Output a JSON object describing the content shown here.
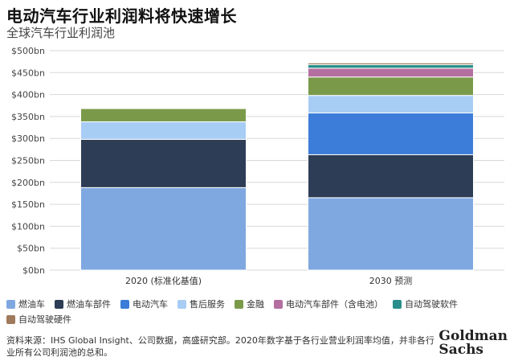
{
  "title": "电动汽车行业利润料将快速增长",
  "subtitle": "全球汽车行业利润池",
  "chart_data": {
    "type": "bar",
    "stacked": true,
    "categories": [
      "2020 (标准化基值)",
      "2030 预测"
    ],
    "series": [
      {
        "name": "燃油车",
        "color": "#7fa8e0",
        "values": [
          188,
          165
        ]
      },
      {
        "name": "燃油车部件",
        "color": "#2e3d56",
        "values": [
          110,
          98
        ]
      },
      {
        "name": "电动汽车",
        "color": "#3b7dd8",
        "values": [
          0,
          95
        ]
      },
      {
        "name": "售后服务",
        "color": "#a8cdf5",
        "values": [
          40,
          40
        ]
      },
      {
        "name": "金融",
        "color": "#7a9a4a",
        "values": [
          30,
          42
        ]
      },
      {
        "name": "电动汽车部件（含电池）",
        "color": "#b46ea0",
        "values": [
          0,
          20
        ]
      },
      {
        "name": "自动驾驶软件",
        "color": "#2a8f8a",
        "values": [
          0,
          8
        ]
      },
      {
        "name": "自动驾驶硬件",
        "color": "#a07a5c",
        "values": [
          0,
          4
        ]
      }
    ],
    "ylim": [
      0,
      500
    ],
    "yticks": [
      "$0bn",
      "$50bn",
      "$100bn",
      "$150bn",
      "$200bn",
      "$250bn",
      "$300bn",
      "$350bn",
      "$400bn",
      "$450bn",
      "$500bn"
    ],
    "ytick_values": [
      0,
      50,
      100,
      150,
      200,
      250,
      300,
      350,
      400,
      450,
      500
    ],
    "legend_position": "bottom"
  },
  "footnote": "资料来源：IHS Global Insight、公司数据，高盛研究部。2020年数字基于各行业营业利润率均值，并非各行业所有公司利润池的总和。",
  "brand": {
    "line1": "Goldman",
    "line2": "Sachs"
  }
}
